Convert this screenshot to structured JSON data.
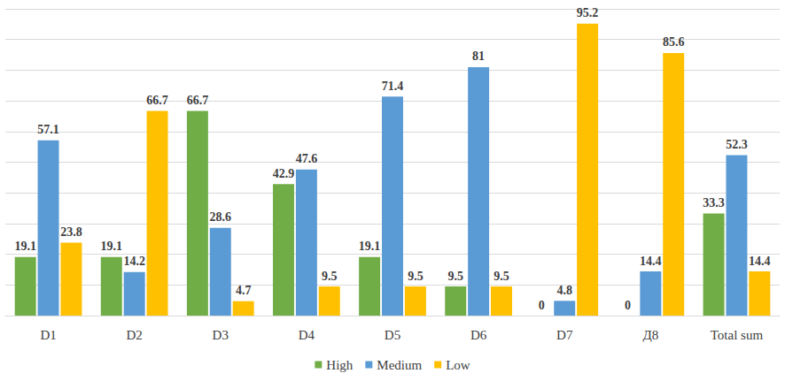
{
  "chart_data": {
    "type": "bar",
    "categories": [
      "D1",
      "D2",
      "D3",
      "D4",
      "D5",
      "D6",
      "D7",
      "Д8",
      "Total sum"
    ],
    "series": [
      {
        "name": "High",
        "color": "#70ad47",
        "values": [
          19.1,
          19.1,
          66.7,
          42.9,
          19.1,
          9.5,
          0,
          0,
          33.3
        ]
      },
      {
        "name": "Medium",
        "color": "#5b9bd5",
        "values": [
          57.1,
          14.2,
          28.6,
          47.6,
          71.4,
          81,
          4.8,
          14.4,
          52.3
        ]
      },
      {
        "name": "Low",
        "color": "#ffc000",
        "values": [
          23.8,
          66.7,
          4.7,
          9.5,
          9.5,
          9.5,
          95.2,
          85.6,
          14.4
        ]
      }
    ],
    "ylim": [
      0,
      100
    ],
    "yticks": [
      0,
      10,
      20,
      30,
      40,
      50,
      60,
      70,
      80,
      90,
      100
    ],
    "grid": true,
    "legend": "bottom",
    "data_labels": true,
    "tick_labels": "x"
  }
}
